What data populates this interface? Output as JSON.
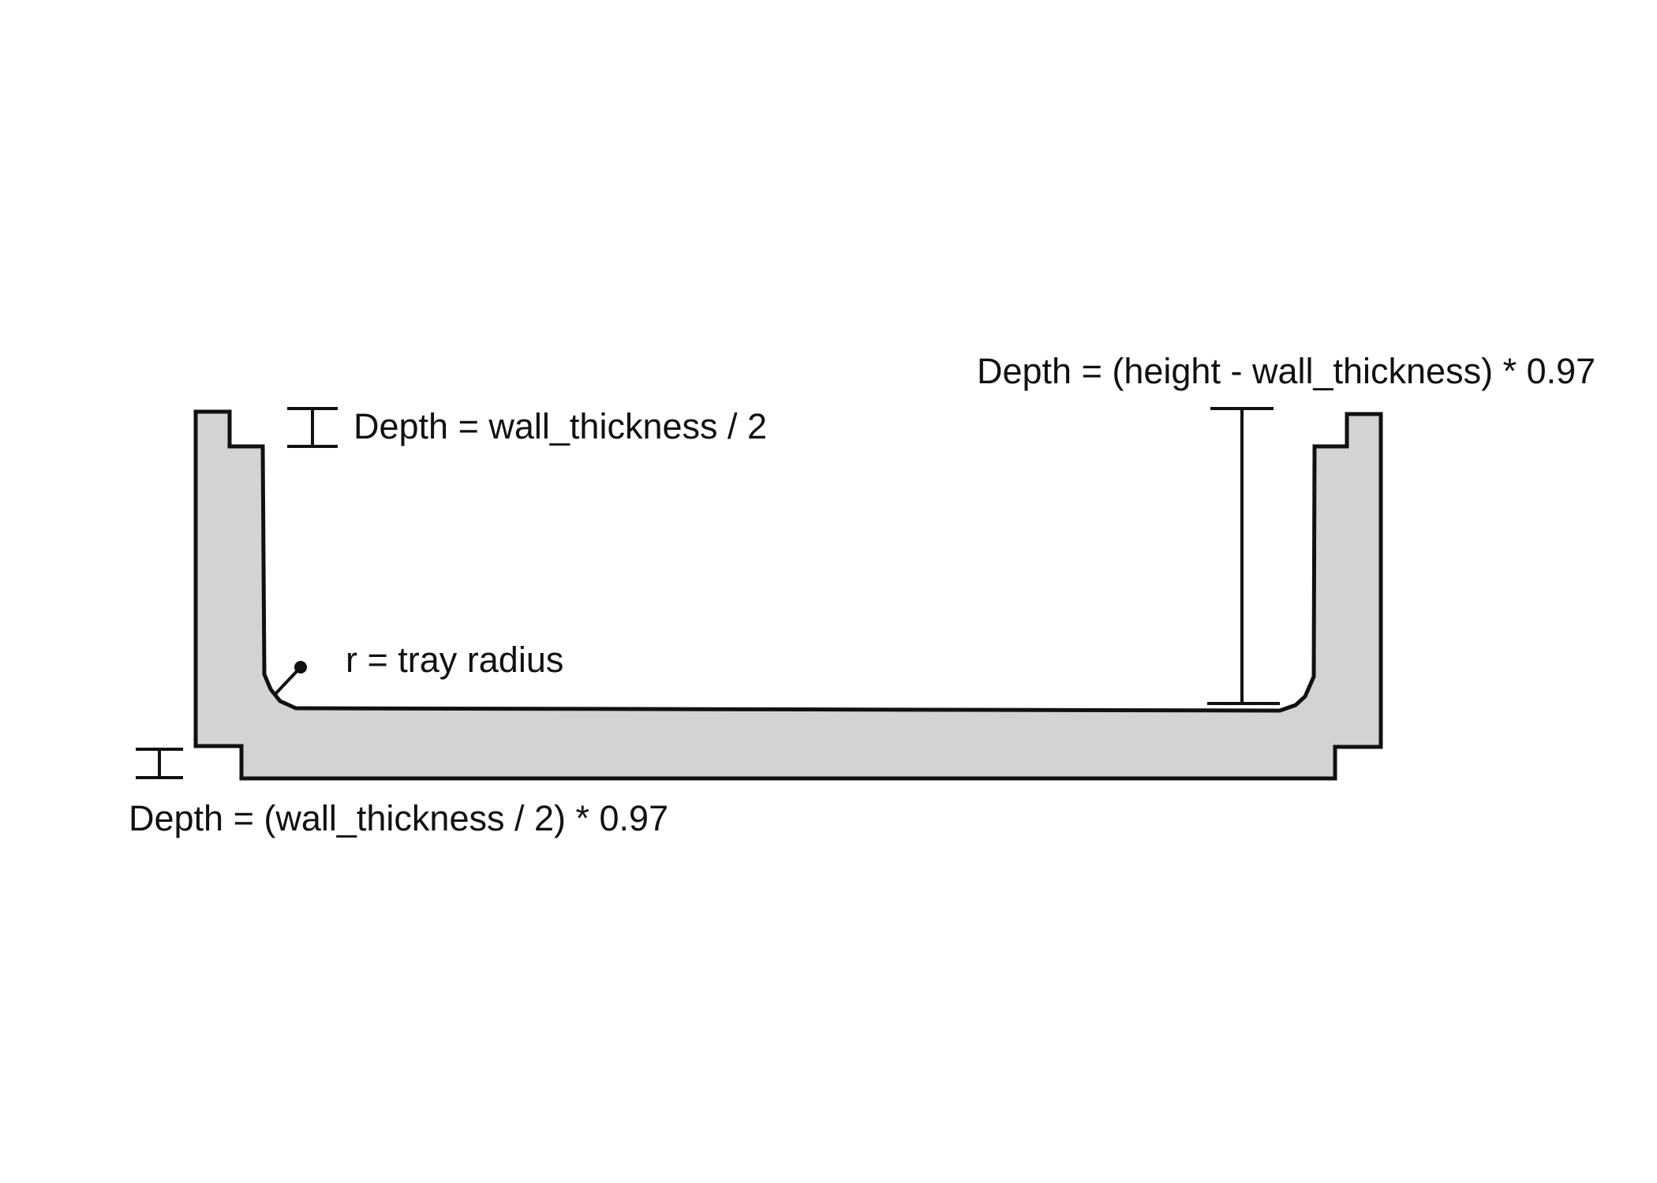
{
  "diagram": {
    "annotations": {
      "top_rim_depth": "Depth = wall_thickness / 2",
      "inner_depth": "Depth = (height - wall_thickness) * 0.97",
      "tray_radius": "r = tray radius",
      "bottom_lip_depth": "Depth = (wall_thickness / 2) * 0.97"
    },
    "colors": {
      "fill": "#d3d3d3",
      "stroke": "#111111",
      "background": "#ffffff"
    }
  }
}
